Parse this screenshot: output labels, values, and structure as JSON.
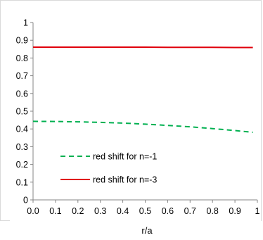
{
  "chart_data": {
    "type": "line",
    "xlabel": "r/a",
    "ylabel": "",
    "xlim": [
      0,
      1
    ],
    "ylim": [
      0,
      1
    ],
    "x_ticks": [
      "0.0",
      "0.1",
      "0.2",
      "0.3",
      "0.4",
      "0.5",
      "0.6",
      "0.7",
      "0.8",
      "0.9",
      "1"
    ],
    "y_ticks": [
      "0",
      "0.1",
      "0.2",
      "0.3",
      "0.4",
      "0.5",
      "0.6",
      "0.7",
      "0.8",
      "0.9",
      "1"
    ],
    "grid": false,
    "legend_position": "lower-left",
    "series": [
      {
        "name": "red shift for n=-1",
        "color": "#00b050",
        "style": "dashed",
        "x": [
          0.0,
          0.1,
          0.2,
          0.3,
          0.4,
          0.5,
          0.6,
          0.7,
          0.8,
          0.9,
          0.98
        ],
        "y": [
          0.443,
          0.442,
          0.44,
          0.437,
          0.433,
          0.427,
          0.42,
          0.412,
          0.402,
          0.391,
          0.381
        ]
      },
      {
        "name": "red shift for n=-3",
        "color": "#e0000b",
        "style": "solid",
        "x": [
          0.0,
          0.1,
          0.2,
          0.3,
          0.4,
          0.5,
          0.6,
          0.7,
          0.8,
          0.9,
          0.98
        ],
        "y": [
          0.861,
          0.861,
          0.861,
          0.861,
          0.861,
          0.861,
          0.86,
          0.86,
          0.86,
          0.859,
          0.859
        ]
      }
    ]
  }
}
